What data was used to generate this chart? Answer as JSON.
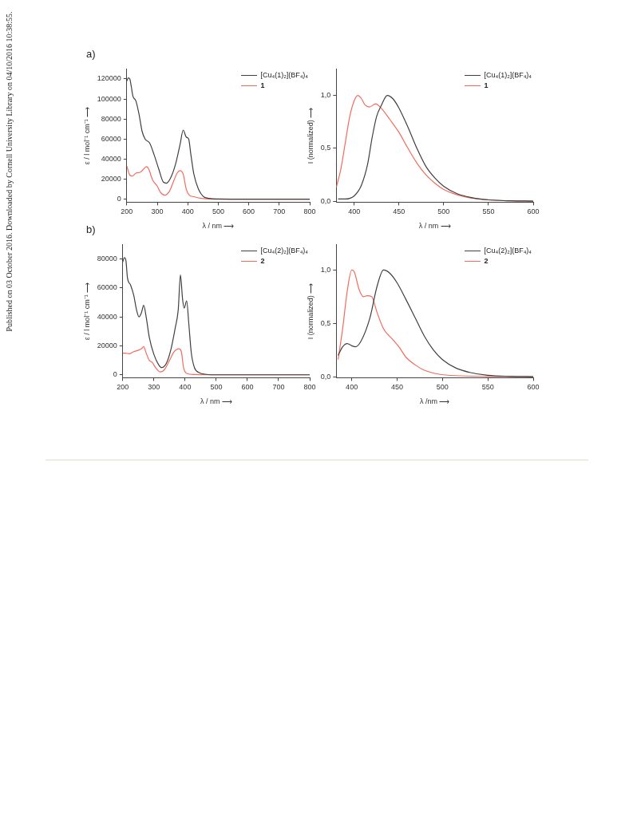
{
  "chart_data": [
    {
      "type": "line",
      "title": "a)",
      "xlabel": "λ / nm ⟶",
      "ylabel": "ε / l mol⁻¹ cm⁻¹ ⟶",
      "xlim": [
        200,
        800
      ],
      "xticks": [
        200,
        300,
        400,
        500,
        600,
        700,
        800
      ],
      "ylim": [
        -3000,
        130000
      ],
      "yticks": [
        0,
        20000,
        40000,
        60000,
        80000,
        100000,
        120000
      ],
      "legend": "top right",
      "annotations": [
        "Published on 03 October 2016. Downloaded by Cornell University Library on 04/10/2016 10:38:55."
      ],
      "series": [
        {
          "name": "[Cu₄(1)₂](BF₄)₄",
          "color": "#404040",
          "x": [
            200,
            205,
            210,
            215,
            220,
            230,
            240,
            250,
            260,
            275,
            290,
            305,
            320,
            330,
            345,
            360,
            375,
            385,
            395,
            403,
            410,
            420,
            435,
            450,
            470,
            500,
            600,
            800
          ],
          "values": [
            118000,
            121000,
            120000,
            112000,
            103000,
            98000,
            85000,
            68000,
            60000,
            56000,
            44000,
            30000,
            17000,
            16000,
            22000,
            35000,
            55000,
            69000,
            62000,
            60000,
            45000,
            25000,
            10000,
            3000,
            800,
            200,
            0,
            0
          ]
        },
        {
          "name": "1",
          "color": "#f26c5e",
          "x": [
            200,
            210,
            218,
            230,
            245,
            258,
            265,
            272,
            285,
            300,
            310,
            325,
            340,
            355,
            365,
            375,
            385,
            395,
            405,
            420,
            440,
            470,
            500,
            800
          ],
          "values": [
            33000,
            24000,
            23000,
            26000,
            27000,
            31000,
            32500,
            30000,
            19000,
            13000,
            7000,
            4000,
            8000,
            19000,
            26000,
            28500,
            25000,
            10000,
            4000,
            2500,
            1000,
            200,
            0,
            0
          ]
        }
      ]
    },
    {
      "type": "line",
      "xlabel": "λ / nm ⟶",
      "ylabel": "I (normalized) ⟶",
      "xlim": [
        380,
        600
      ],
      "xticks": [
        400,
        450,
        500,
        550,
        600
      ],
      "ylim": [
        -0.01,
        1.25
      ],
      "yticks": [
        {
          "value": 0,
          "label": "0,0"
        },
        {
          "value": 0.5,
          "label": "0,5"
        },
        {
          "value": 1,
          "label": "1,0"
        }
      ],
      "legend": "top right",
      "series": [
        {
          "name": "[Cu₄(1)₂](BF₄)₄",
          "color": "#404040",
          "x": [
            382,
            390,
            400,
            408,
            415,
            420,
            425,
            430,
            437,
            443,
            450,
            460,
            470,
            480,
            490,
            500,
            515,
            530,
            550,
            575,
            600
          ],
          "values": [
            0.02,
            0.02,
            0.05,
            0.15,
            0.35,
            0.6,
            0.8,
            0.9,
            1.0,
            0.97,
            0.88,
            0.7,
            0.5,
            0.33,
            0.22,
            0.14,
            0.07,
            0.035,
            0.012,
            0.003,
            0
          ]
        },
        {
          "name": "1",
          "color": "#f26c5e",
          "x": [
            380,
            385,
            390,
            395,
            400,
            404,
            408,
            412,
            417,
            424,
            430,
            440,
            450,
            460,
            470,
            480,
            490,
            500,
            515,
            530,
            550,
            575,
            600
          ],
          "values": [
            0.13,
            0.3,
            0.55,
            0.8,
            0.95,
            1.0,
            0.97,
            0.91,
            0.89,
            0.92,
            0.88,
            0.77,
            0.65,
            0.5,
            0.36,
            0.25,
            0.17,
            0.11,
            0.06,
            0.03,
            0.012,
            0.003,
            0
          ]
        }
      ]
    },
    {
      "type": "line",
      "title": "b)",
      "xlabel": "λ / nm ⟶",
      "ylabel": "ε / l mol⁻¹ cm⁻¹ ⟶",
      "xlim": [
        200,
        800
      ],
      "xticks": [
        200,
        300,
        400,
        500,
        600,
        700,
        800
      ],
      "ylim": [
        -2000,
        90000
      ],
      "yticks": [
        0,
        20000,
        40000,
        60000,
        80000
      ],
      "legend": "top right",
      "series": [
        {
          "name": "[Cu₄(2)₂](BF₄)₄",
          "color": "#404040",
          "x": [
            200,
            205,
            210,
            215,
            225,
            235,
            245,
            252,
            260,
            267,
            275,
            285,
            300,
            315,
            325,
            340,
            355,
            368,
            378,
            385,
            392,
            397,
            405,
            412,
            420,
            430,
            445,
            470,
            500,
            800
          ],
          "values": [
            78000,
            81000,
            79000,
            67000,
            62000,
            55000,
            44000,
            40000,
            43000,
            48000,
            40000,
            26000,
            14000,
            7000,
            5000,
            8000,
            18000,
            32000,
            45000,
            69000,
            52000,
            46000,
            51000,
            35000,
            15000,
            5000,
            1500,
            300,
            0,
            0
          ]
        },
        {
          "name": "2",
          "color": "#f26c5e",
          "x": [
            200,
            210,
            220,
            235,
            250,
            260,
            267,
            275,
            285,
            295,
            305,
            320,
            335,
            350,
            365,
            380,
            388,
            395,
            405,
            430,
            470,
            800
          ],
          "values": [
            15000,
            15000,
            14500,
            16000,
            17000,
            18000,
            19500,
            15000,
            10000,
            8500,
            5000,
            2000,
            4000,
            10000,
            16000,
            18000,
            16000,
            5000,
            1000,
            200,
            0,
            0
          ]
        }
      ]
    },
    {
      "type": "line",
      "xlabel": "λ /nm ⟶",
      "ylabel": "I (normalized) ⟶",
      "xlim": [
        383,
        600
      ],
      "xticks": [
        400,
        450,
        500,
        550,
        600
      ],
      "ylim": [
        -0.01,
        1.24
      ],
      "yticks": [
        {
          "value": 0,
          "label": "0,0"
        },
        {
          "value": 0.5,
          "label": "0,5"
        },
        {
          "value": 1,
          "label": "1,0"
        }
      ],
      "legend": "top right",
      "series": [
        {
          "name": "[Cu₄(2)₂](BF₄)₄",
          "color": "#404040",
          "x": [
            385,
            390,
            395,
            400,
            404,
            410,
            420,
            428,
            435,
            442,
            450,
            460,
            470,
            480,
            490,
            500,
            515,
            530,
            550,
            575,
            600
          ],
          "values": [
            0.2,
            0.28,
            0.31,
            0.29,
            0.28,
            0.33,
            0.55,
            0.85,
            1.0,
            0.97,
            0.88,
            0.72,
            0.55,
            0.38,
            0.25,
            0.16,
            0.08,
            0.04,
            0.012,
            0.003,
            0
          ]
        },
        {
          "name": "2",
          "color": "#f26c5e",
          "x": [
            385,
            390,
            395,
            400,
            403,
            408,
            413,
            417,
            422,
            428,
            435,
            445,
            452,
            460,
            470,
            480,
            495,
            520,
            550,
            600
          ],
          "values": [
            0.16,
            0.45,
            0.8,
            1.0,
            0.98,
            0.82,
            0.75,
            0.76,
            0.75,
            0.6,
            0.45,
            0.35,
            0.28,
            0.18,
            0.11,
            0.06,
            0.025,
            0.008,
            0.002,
            0
          ]
        }
      ]
    }
  ]
}
